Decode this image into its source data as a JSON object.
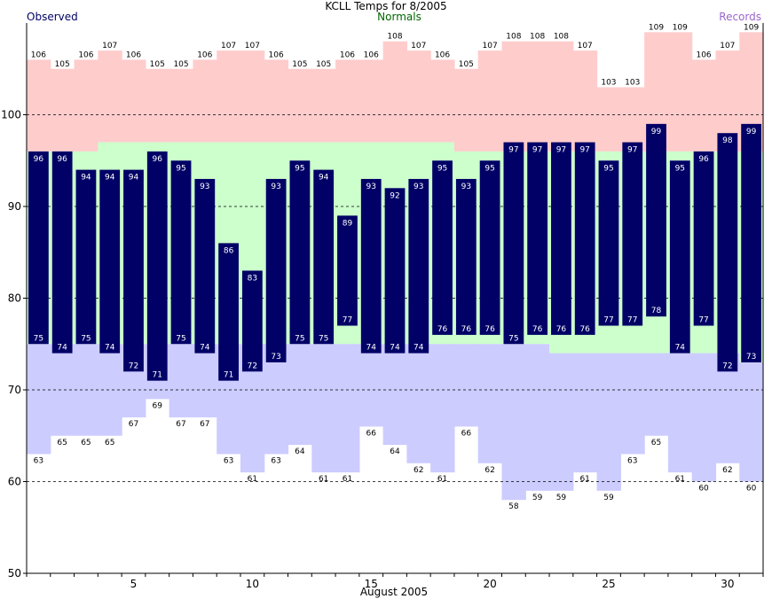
{
  "header": {
    "title": "KCLL Temps for 8/2005",
    "observed_label": "Observed",
    "normals_label": "Normals",
    "records_label": "Records"
  },
  "colors": {
    "observed": "#000066",
    "normals": "#ccffcc",
    "record_high": "#ffcccc",
    "record_low": "#ccccff",
    "observed_text": "#000066",
    "normals_text": "#006600",
    "records_text": "#9966cc"
  },
  "chart_data": {
    "type": "bar",
    "title": "KCLL Temps for 8/2005",
    "xlabel": "August 2005",
    "ylabel": "",
    "days": [
      1,
      2,
      3,
      4,
      5,
      6,
      7,
      8,
      9,
      10,
      11,
      12,
      13,
      14,
      15,
      16,
      17,
      18,
      19,
      20,
      21,
      22,
      23,
      24,
      25,
      26,
      27,
      28,
      29,
      30,
      31
    ],
    "xticks": [
      5,
      10,
      15,
      20,
      25,
      30
    ],
    "ylim": [
      50,
      110
    ],
    "yticks": [
      50,
      60,
      70,
      80,
      90,
      100
    ],
    "grid": "dashed at 60, 70, 80, 90, 100",
    "series": [
      {
        "name": "Observed",
        "kind": "high",
        "values": [
          96,
          96,
          94,
          94,
          94,
          96,
          95,
          93,
          86,
          83,
          93,
          95,
          94,
          89,
          93,
          92,
          93,
          95,
          93,
          95,
          97,
          97,
          97,
          97,
          95,
          97,
          99,
          95,
          96,
          98,
          99
        ]
      },
      {
        "name": "Observed",
        "kind": "low",
        "values": [
          75,
          74,
          75,
          74,
          72,
          71,
          75,
          74,
          71,
          72,
          73,
          75,
          75,
          77,
          74,
          74,
          74,
          76,
          76,
          76,
          75,
          76,
          76,
          76,
          77,
          77,
          78,
          74,
          77,
          72,
          73
        ]
      },
      {
        "name": "Normals",
        "kind": "high",
        "values": [
          96,
          96,
          96,
          97,
          97,
          97,
          97,
          97,
          97,
          97,
          97,
          97,
          97,
          97,
          97,
          97,
          97,
          97,
          96,
          96,
          96,
          96,
          96,
          96,
          96,
          96,
          96,
          96,
          96,
          96,
          96
        ]
      },
      {
        "name": "Normals",
        "kind": "low",
        "values": [
          75,
          75,
          75,
          75,
          75,
          75,
          75,
          75,
          75,
          75,
          75,
          75,
          75,
          75,
          75,
          75,
          75,
          75,
          75,
          75,
          75,
          75,
          74,
          74,
          74,
          74,
          74,
          74,
          74,
          74,
          73
        ]
      },
      {
        "name": "Records",
        "kind": "high",
        "values": [
          106,
          105,
          106,
          107,
          106,
          105,
          105,
          106,
          107,
          107,
          106,
          105,
          105,
          106,
          106,
          108,
          107,
          106,
          105,
          107,
          108,
          108,
          108,
          107,
          103,
          103,
          109,
          109,
          106,
          107,
          109
        ]
      },
      {
        "name": "Records",
        "kind": "low",
        "values": [
          63,
          65,
          65,
          65,
          67,
          69,
          67,
          67,
          63,
          61,
          63,
          64,
          61,
          61,
          66,
          64,
          62,
          61,
          66,
          62,
          58,
          59,
          59,
          61,
          59,
          63,
          65,
          61,
          60,
          62,
          60
        ]
      }
    ]
  }
}
